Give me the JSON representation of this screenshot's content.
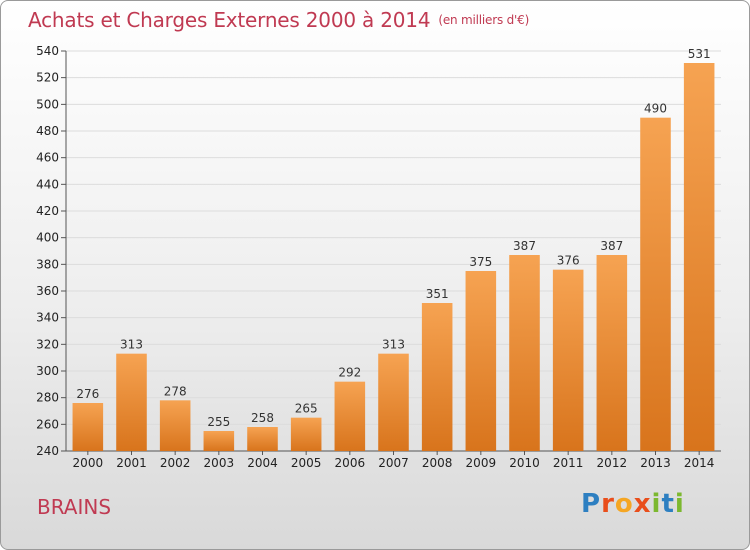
{
  "header": {
    "title": "Achats et Charges Externes 2000 à 2014",
    "subtitle": "(en milliers d'€)"
  },
  "footer": {
    "location": "BRAINS",
    "logo": "Proxiti"
  },
  "colors": {
    "bar_top": "#f6a352",
    "bar_bottom": "#d8741c",
    "title": "#c03a52"
  },
  "chart_data": {
    "type": "bar",
    "title": "Achats et Charges Externes 2000 à 2014",
    "subtitle": "(en milliers d'€)",
    "categories": [
      "2000",
      "2001",
      "2002",
      "2003",
      "2004",
      "2005",
      "2006",
      "2007",
      "2008",
      "2009",
      "2010",
      "2011",
      "2012",
      "2013",
      "2014"
    ],
    "values": [
      276,
      313,
      278,
      255,
      258,
      265,
      292,
      313,
      351,
      375,
      387,
      376,
      387,
      490,
      531
    ],
    "ylim": [
      240,
      540
    ],
    "yticks": [
      240,
      260,
      280,
      300,
      320,
      340,
      360,
      380,
      400,
      420,
      440,
      460,
      480,
      500,
      520,
      540
    ],
    "grid": true,
    "xlabel": "",
    "ylabel": ""
  }
}
